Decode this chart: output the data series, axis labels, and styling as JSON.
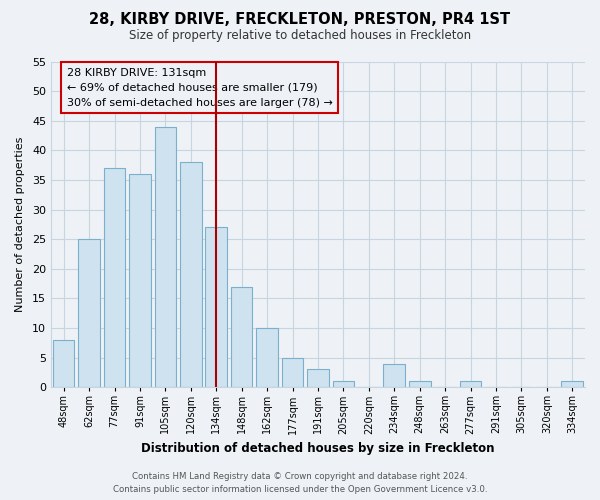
{
  "title": "28, KIRBY DRIVE, FRECKLETON, PRESTON, PR4 1ST",
  "subtitle": "Size of property relative to detached houses in Freckleton",
  "xlabel": "Distribution of detached houses by size in Freckleton",
  "ylabel": "Number of detached properties",
  "bin_labels": [
    "48sqm",
    "62sqm",
    "77sqm",
    "91sqm",
    "105sqm",
    "120sqm",
    "134sqm",
    "148sqm",
    "162sqm",
    "177sqm",
    "191sqm",
    "205sqm",
    "220sqm",
    "234sqm",
    "248sqm",
    "263sqm",
    "277sqm",
    "291sqm",
    "305sqm",
    "320sqm",
    "334sqm"
  ],
  "bar_heights": [
    8,
    25,
    37,
    36,
    44,
    38,
    27,
    17,
    10,
    5,
    3,
    1,
    0,
    4,
    1,
    0,
    1,
    0,
    0,
    0,
    1
  ],
  "bar_color": "#cfe2f0",
  "bar_edge_color": "#7ab0cc",
  "vline_color": "#aa0000",
  "vline_x_idx": 6,
  "annotation_title": "28 KIRBY DRIVE: 131sqm",
  "annotation_line1": "← 69% of detached houses are smaller (179)",
  "annotation_line2": "30% of semi-detached houses are larger (78) →",
  "annotation_box_edge": "#cc0000",
  "ylim": [
    0,
    55
  ],
  "yticks": [
    0,
    5,
    10,
    15,
    20,
    25,
    30,
    35,
    40,
    45,
    50,
    55
  ],
  "footer_line1": "Contains HM Land Registry data © Crown copyright and database right 2024.",
  "footer_line2": "Contains public sector information licensed under the Open Government Licence v3.0.",
  "bg_color": "#eef2f7",
  "plot_bg_color": "#eef2f7",
  "grid_color": "#c8d4e0"
}
